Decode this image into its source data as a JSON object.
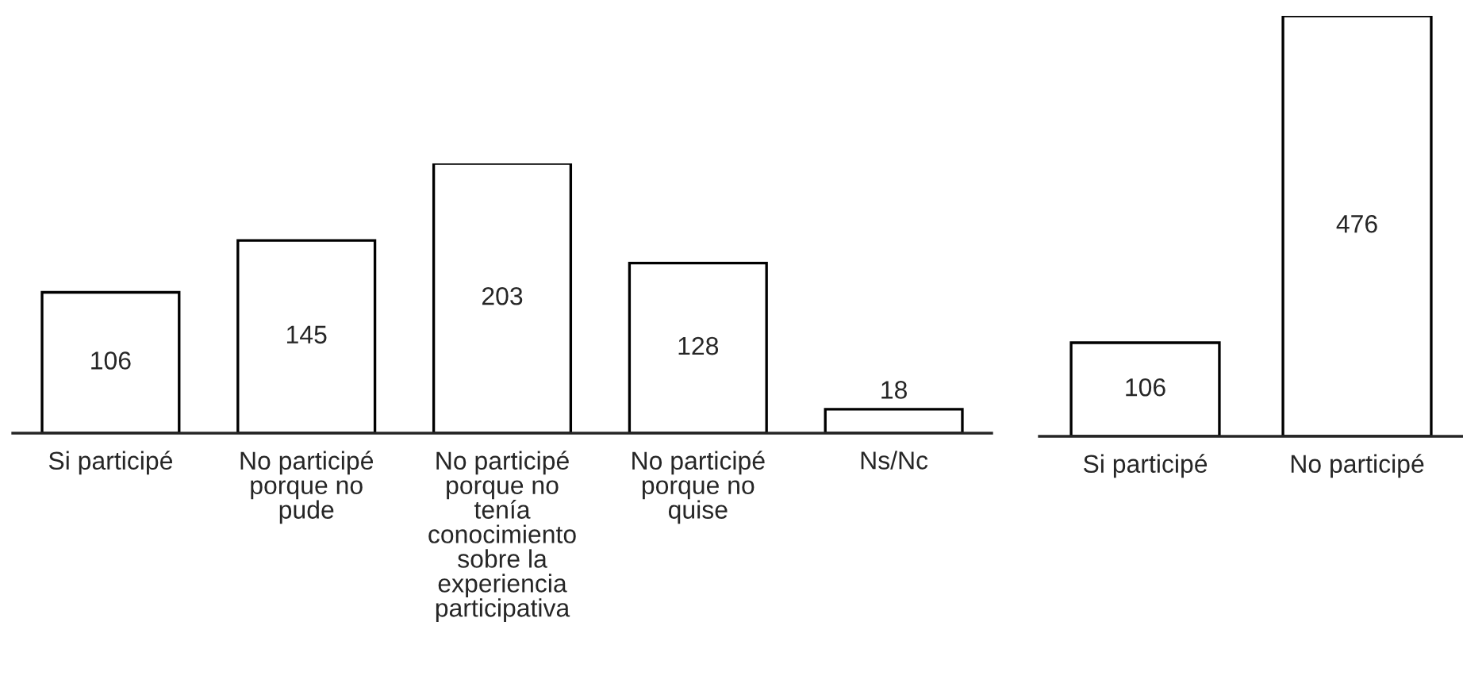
{
  "chart_data": [
    {
      "type": "bar",
      "categories": [
        "Si participé",
        "No participé\nporque no\npude",
        "No participé\nporque no\ntenía\nconocimiento\nsobre la\nexperiencia\nparticipativa",
        "No participé\nporque no\nquise",
        "Ns/Nc"
      ],
      "values": [
        106,
        145,
        203,
        128,
        18
      ],
      "color": "#ffffff",
      "data_labels": true,
      "grid": false,
      "legend": false
    },
    {
      "type": "bar",
      "categories": [
        "Si participé",
        "No participé"
      ],
      "values": [
        106,
        476
      ],
      "color": "#ffffff",
      "data_labels": true,
      "grid": false,
      "legend": false
    }
  ]
}
